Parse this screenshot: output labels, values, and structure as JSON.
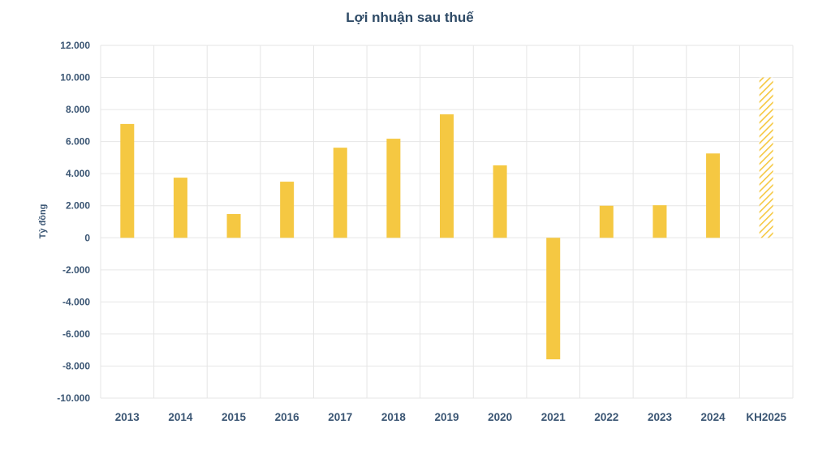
{
  "chart_data": {
    "type": "bar",
    "title": "Lợi nhuận sau thuế",
    "ylabel": "Tỷ đồng",
    "xlabel": "",
    "ylim": [
      -10000,
      12000
    ],
    "ytick_step": 2000,
    "ytick_labels": [
      "12.000",
      "10.000",
      "8.000",
      "6.000",
      "4.000",
      "2.000",
      "0",
      "-2.000",
      "-4.000",
      "-6.000",
      "-8.000",
      "-10.000"
    ],
    "categories": [
      "2013",
      "2014",
      "2015",
      "2016",
      "2017",
      "2018",
      "2019",
      "2020",
      "2021",
      "2022",
      "2023",
      "2024",
      "KH2025"
    ],
    "values": [
      7100,
      3750,
      1480,
      3500,
      5620,
      6180,
      7700,
      4520,
      -7580,
      2000,
      2030,
      5260,
      10000
    ],
    "planned": [
      false,
      false,
      false,
      false,
      false,
      false,
      false,
      false,
      false,
      false,
      false,
      false,
      true
    ],
    "grid": true,
    "legend": "none",
    "bar_color": "#f5c842",
    "planned_pattern": "diagonal-hatch"
  }
}
